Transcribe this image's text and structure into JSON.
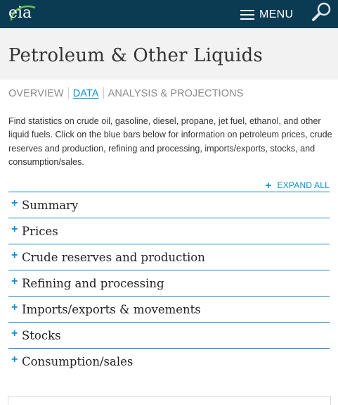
{
  "header": {
    "logo_text": "eia",
    "menu_label": "MENU",
    "search_icon": "search-icon",
    "colors": {
      "background": "#0b3a53",
      "logo_arc": "#6cc04a",
      "icon": "#ffffff"
    }
  },
  "page": {
    "title": "Petroleum & Other Liquids"
  },
  "tabs": [
    {
      "label": "OVERVIEW",
      "active": false
    },
    {
      "label": "DATA",
      "active": true
    },
    {
      "label": "ANALYSIS & PROJECTIONS",
      "active": false
    }
  ],
  "intro": "Find statistics on crude oil, gasoline, diesel, propane, jet fuel, ethanol, and other liquid fuels. Click on the blue bars below for information on petroleum prices, crude reserves and production, refining and processing, imports/exports, stocks, and consumption/sales.",
  "expand_all": {
    "icon": "+",
    "label": "EXPAND ALL"
  },
  "accordion": {
    "icon": "+",
    "items": [
      {
        "label": "Summary"
      },
      {
        "label": "Prices"
      },
      {
        "label": "Crude reserves and production"
      },
      {
        "label": "Refining and processing"
      },
      {
        "label": "Imports/exports & movements"
      },
      {
        "label": "Stocks"
      },
      {
        "label": "Consumption/sales"
      }
    ]
  },
  "colors": {
    "accent": "#0a8fd0",
    "divider": "#1a86c0",
    "title_band": "#f2f2f2"
  }
}
